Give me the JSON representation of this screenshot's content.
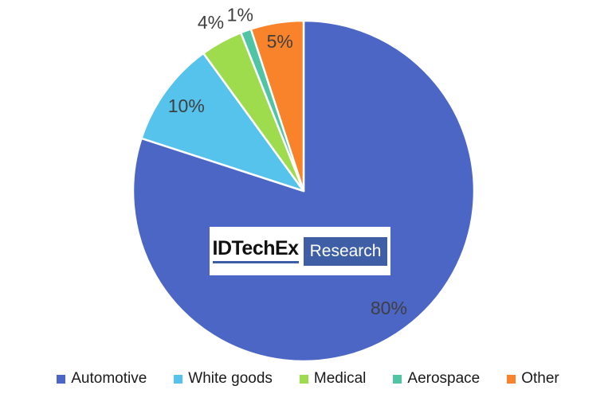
{
  "chart_data": {
    "type": "pie",
    "categories": [
      "Automotive",
      "White goods",
      "Medical",
      "Aerospace",
      "Other"
    ],
    "values": [
      80,
      10,
      4,
      1,
      5
    ],
    "value_labels": [
      "80%",
      "10%",
      "4%",
      "1%",
      "5%"
    ],
    "colors": [
      "#4C66C6",
      "#55C3EB",
      "#9EDC4E",
      "#50C5A5",
      "#F9832B"
    ],
    "start_angle_deg": -90,
    "direction": "clockwise",
    "legend_position": "bottom",
    "label_color": "#3F3F3F",
    "slice_gap_color": "#FFFFFF"
  },
  "watermark": {
    "brand": "IDTechEx",
    "suffix": "Research",
    "accent_color": "#3E5FA6"
  }
}
